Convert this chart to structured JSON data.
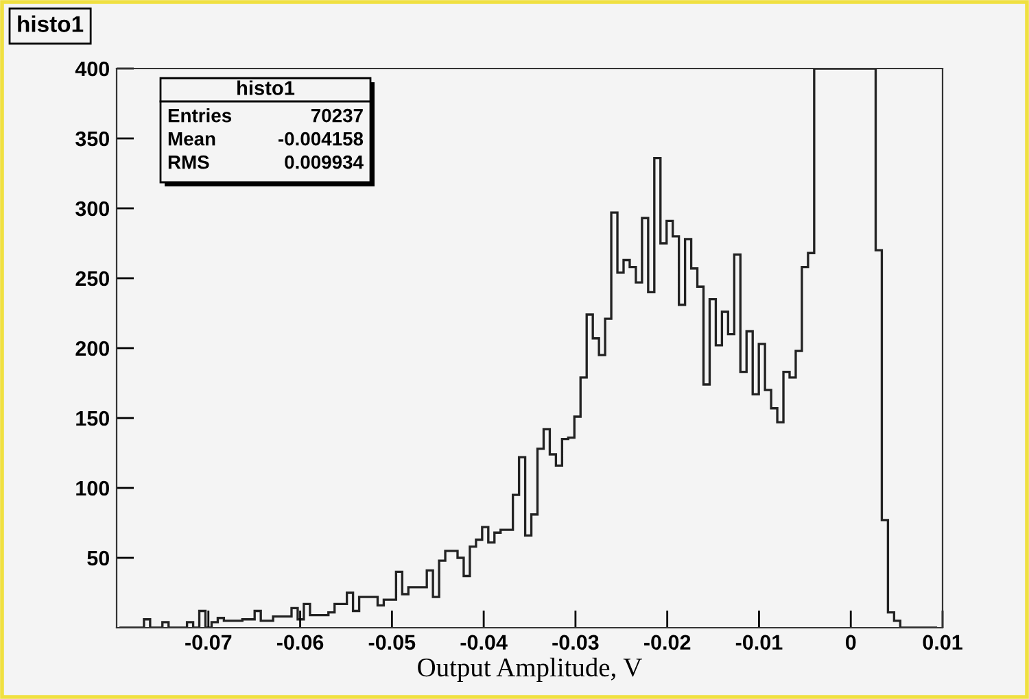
{
  "chart_data": {
    "type": "histogram",
    "title": "histo1",
    "xlabel": "Output Amplitude, V",
    "annotations": [
      "histo1",
      "Entries",
      "70237",
      "Mean",
      "-0.004158",
      "RMS",
      "0.009934"
    ],
    "color": "#222222",
    "xlim": [
      -0.08,
      0.01
    ],
    "ylim": [
      0,
      400
    ],
    "xticks": [
      -0.07,
      -0.06,
      -0.05,
      -0.04,
      -0.03,
      -0.02,
      -0.01,
      0,
      0.01
    ],
    "yticks": [
      50,
      100,
      150,
      200,
      250,
      300,
      350,
      400
    ],
    "bins": [
      -0.0797,
      -0.07903,
      -0.07836,
      -0.07769,
      -0.07702,
      -0.07635,
      -0.07568,
      -0.07501,
      -0.07434,
      -0.07367,
      -0.073,
      -0.07233,
      -0.07166,
      -0.07099,
      -0.07032,
      -0.06965,
      -0.06898,
      -0.06831,
      -0.06764,
      -0.06697,
      -0.0663,
      -0.06563,
      -0.06496,
      -0.06429,
      -0.06362,
      -0.06295,
      -0.06228,
      -0.06161,
      -0.06094,
      -0.06027,
      -0.0596,
      -0.05893,
      -0.05826,
      -0.05759,
      -0.05692,
      -0.05625,
      -0.05558,
      -0.05491,
      -0.05424,
      -0.05357,
      -0.0529,
      -0.05223,
      -0.05156,
      -0.05089,
      -0.05022,
      -0.04955,
      -0.04888,
      -0.04821,
      -0.04754,
      -0.04687,
      -0.0462,
      -0.04553,
      -0.04486,
      -0.04419,
      -0.04352,
      -0.04285,
      -0.04218,
      -0.04151,
      -0.04084,
      -0.04017,
      -0.0395,
      -0.03883,
      -0.03816,
      -0.03749,
      -0.03682,
      -0.03615,
      -0.03548,
      -0.03481,
      -0.03414,
      -0.03347,
      -0.0328,
      -0.03213,
      -0.03146,
      -0.03079,
      -0.03012,
      -0.02945,
      -0.02878,
      -0.02811,
      -0.02744,
      -0.02677,
      -0.0261,
      -0.02543,
      -0.02476,
      -0.02409,
      -0.02342,
      -0.02275,
      -0.02208,
      -0.02141,
      -0.02074,
      -0.02007,
      -0.0194,
      -0.01873,
      -0.01806,
      -0.01739,
      -0.01672,
      -0.01605,
      -0.01538,
      -0.01471,
      -0.01404,
      -0.01337,
      -0.0127,
      -0.01203,
      -0.01136,
      -0.01069,
      -0.01002,
      -0.00935,
      -0.00868,
      -0.00801,
      -0.00734,
      -0.00667,
      -0.006,
      -0.00533,
      -0.00466,
      -0.00399,
      -0.00332,
      -0.00265,
      -0.00198,
      -0.00131,
      -0.00064,
      3e-05,
      0.0007,
      0.00137,
      0.00204,
      0.00271,
      0.00338,
      0.00405,
      0.00472,
      0.00539,
      0.00606,
      0.00673,
      0.0074,
      0.00807,
      0.00874,
      0.00941
    ],
    "values": [
      0,
      0,
      0,
      0,
      6,
      0,
      0,
      4,
      0,
      0,
      0,
      4,
      0,
      12,
      0,
      4,
      7,
      5,
      5,
      5,
      6,
      6,
      12,
      5,
      5,
      8,
      8,
      8,
      14,
      6,
      17,
      9,
      9,
      9,
      11,
      17,
      17,
      25,
      12,
      22,
      22,
      22,
      16,
      20,
      20,
      40,
      24,
      29,
      29,
      29,
      41,
      22,
      48,
      55,
      55,
      50,
      37,
      58,
      63,
      72,
      61,
      68,
      70,
      70,
      95,
      122,
      66,
      81,
      128,
      142,
      124,
      116,
      135,
      136,
      151,
      179,
      224,
      207,
      195,
      221,
      297,
      254,
      263,
      258,
      247,
      293,
      240,
      336,
      275,
      291,
      280,
      231,
      278,
      257,
      244,
      174,
      235,
      202,
      226,
      210,
      267,
      183,
      212,
      167,
      203,
      170,
      157,
      147,
      183,
      179,
      198,
      258,
      268,
      400,
      400,
      400,
      400,
      400,
      400,
      400,
      400,
      400,
      400,
      270,
      77,
      11,
      5,
      0,
      0,
      0,
      0,
      0,
      0
    ]
  }
}
